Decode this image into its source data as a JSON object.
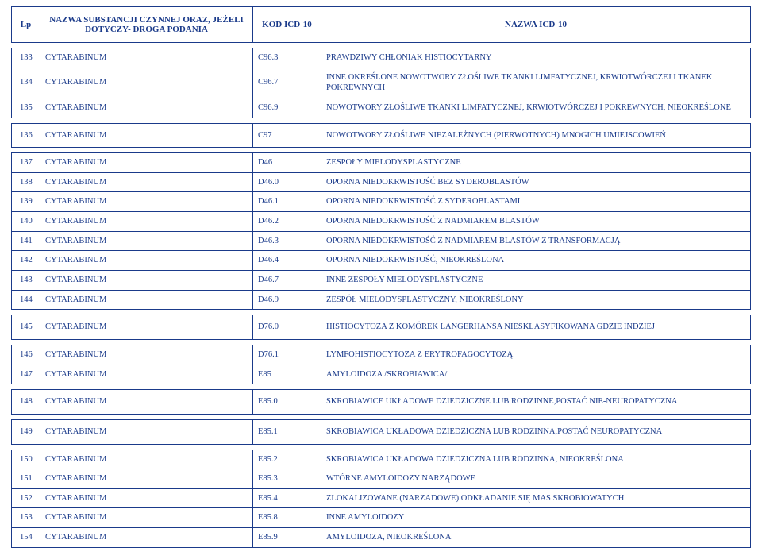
{
  "header": {
    "lp": "Lp",
    "substancja": "NAZWA SUBSTANCJI CZYNNEJ ORAZ, JEŻELI DOTYCZY- DROGA PODANIA",
    "kod": "KOD ICD-10",
    "nazwa": "NAZWA ICD-10"
  },
  "groups": [
    {
      "rows": [
        {
          "lp": "133",
          "sub": "CYTARABINUM",
          "kod": "C96.3",
          "naz": "PRAWDZIWY CHŁONIAK HISTIOCYTARNY"
        },
        {
          "lp": "134",
          "sub": "CYTARABINUM",
          "kod": "C96.7",
          "naz": "INNE OKREŚLONE NOWOTWORY ZŁOŚLIWE TKANKI LIMFATYCZNEJ, KRWIOTWÓRCZEJ I TKANEK POKREWNYCH"
        },
        {
          "lp": "135",
          "sub": "CYTARABINUM",
          "kod": "C96.9",
          "naz": "NOWOTWORY ZŁOŚLIWE TKANKI LIMFATYCZNEJ, KRWIOTWÓRCZEJ I POKREWNYCH, NIEOKREŚLONE"
        }
      ]
    },
    {
      "rows": [
        {
          "lp": "136",
          "sub": "CYTARABINUM",
          "kod": "C97",
          "naz": "NOWOTWORY ZŁOŚLIWE NIEZALEŻNYCH (PIERWOTNYCH) MNOGICH UMIEJSCOWIEŃ",
          "tall": true
        }
      ]
    },
    {
      "rows": [
        {
          "lp": "137",
          "sub": "CYTARABINUM",
          "kod": "D46",
          "naz": "ZESPOŁY MIELODYSPLASTYCZNE"
        },
        {
          "lp": "138",
          "sub": "CYTARABINUM",
          "kod": "D46.0",
          "naz": "OPORNA NIEDOKRWISTOŚĆ BEZ SYDEROBLASTÓW"
        },
        {
          "lp": "139",
          "sub": "CYTARABINUM",
          "kod": "D46.1",
          "naz": "OPORNA NIEDOKRWISTOŚĆ Z SYDEROBLASTAMI"
        },
        {
          "lp": "140",
          "sub": "CYTARABINUM",
          "kod": "D46.2",
          "naz": "OPORNA NIEDOKRWISTOŚĆ Z NADMIAREM BLASTÓW"
        },
        {
          "lp": "141",
          "sub": "CYTARABINUM",
          "kod": "D46.3",
          "naz": "OPORNA NIEDOKRWISTOŚĆ Z NADMIAREM BLASTÓW Z TRANSFORMACJĄ"
        },
        {
          "lp": "142",
          "sub": "CYTARABINUM",
          "kod": "D46.4",
          "naz": "OPORNA NIEDOKRWISTOŚĆ, NIEOKREŚLONA"
        },
        {
          "lp": "143",
          "sub": "CYTARABINUM",
          "kod": "D46.7",
          "naz": "INNE ZESPOŁY MIELODYSPLASTYCZNE"
        },
        {
          "lp": "144",
          "sub": "CYTARABINUM",
          "kod": "D46.9",
          "naz": "ZESPÓŁ MIELODYSPLASTYCZNY, NIEOKREŚLONY"
        }
      ]
    },
    {
      "rows": [
        {
          "lp": "145",
          "sub": "CYTARABINUM",
          "kod": "D76.0",
          "naz": "HISTIOCYTOZA Z KOMÓREK LANGERHANSA NIESKLASYFIKOWANA GDZIE INDZIEJ",
          "tall": true
        }
      ]
    },
    {
      "rows": [
        {
          "lp": "146",
          "sub": "CYTARABINUM",
          "kod": "D76.1",
          "naz": "LYMFOHISTIOCYTOZA Z ERYTROFAGOCYTOZĄ"
        },
        {
          "lp": "147",
          "sub": "CYTARABINUM",
          "kod": "E85",
          "naz": "AMYLOIDOZA /SKROBIAWICA/"
        }
      ]
    },
    {
      "rows": [
        {
          "lp": "148",
          "sub": "CYTARABINUM",
          "kod": "E85.0",
          "naz": "SKROBIAWICE UKŁADOWE DZIEDZICZNE LUB RODZINNE,POSTAĆ NIE-NEUROPATYCZNA",
          "tall": true
        }
      ]
    },
    {
      "rows": [
        {
          "lp": "149",
          "sub": "CYTARABINUM",
          "kod": "E85.1",
          "naz": "SKROBIAWICA UKŁADOWA DZIEDZICZNA LUB RODZINNA,POSTAĆ NEUROPATYCZNA",
          "tall": true
        }
      ]
    },
    {
      "rows": [
        {
          "lp": "150",
          "sub": "CYTARABINUM",
          "kod": "E85.2",
          "naz": "SKROBIAWICA UKŁADOWA DZIEDZICZNA LUB RODZINNA, NIEOKREŚLONA"
        },
        {
          "lp": "151",
          "sub": "CYTARABINUM",
          "kod": "E85.3",
          "naz": "WTÓRNE AMYLOIDOZY NARZĄDOWE"
        },
        {
          "lp": "152",
          "sub": "CYTARABINUM",
          "kod": "E85.4",
          "naz": "ZLOKALIZOWANE (NARZADOWE) ODKŁADANIE SIĘ MAS SKROBIOWATYCH"
        },
        {
          "lp": "153",
          "sub": "CYTARABINUM",
          "kod": "E85.8",
          "naz": "INNE AMYLOIDOZY"
        },
        {
          "lp": "154",
          "sub": "CYTARABINUM",
          "kod": "E85.9",
          "naz": "AMYLOIDOZA, NIEOKREŚLONA"
        }
      ]
    }
  ]
}
